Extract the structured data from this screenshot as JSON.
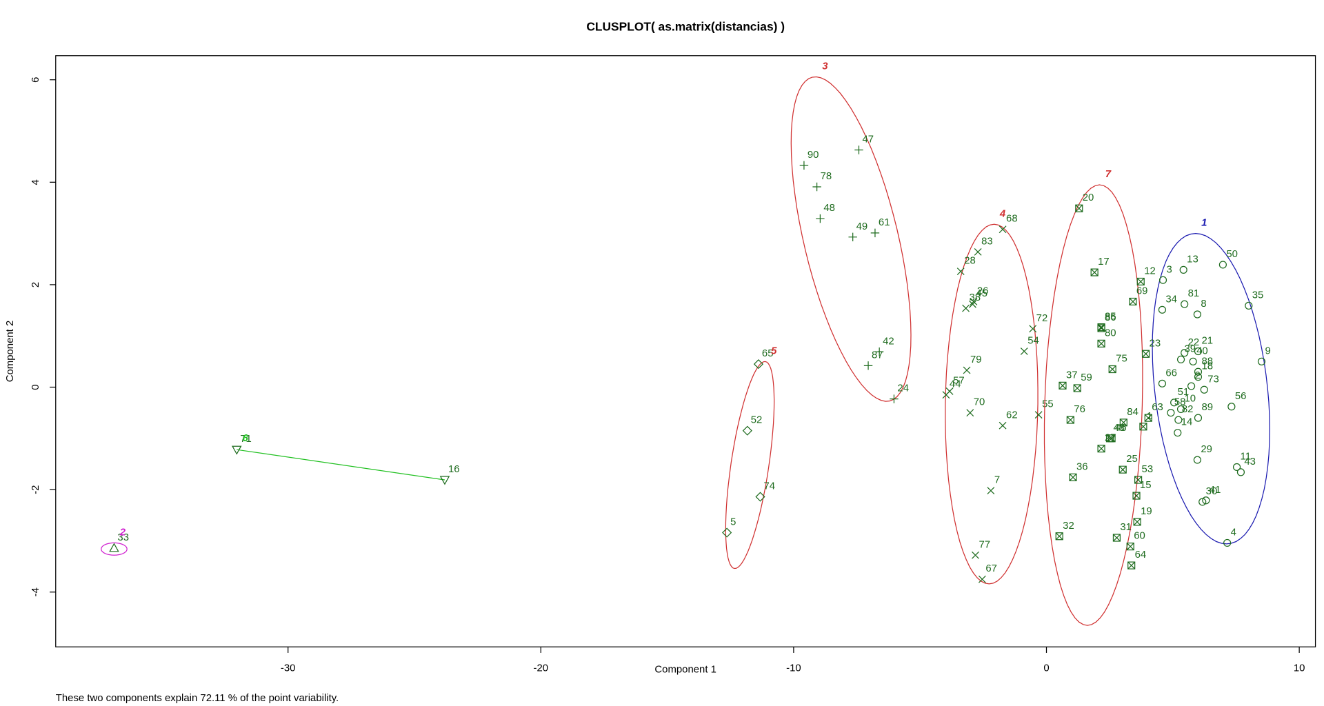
{
  "chart_data": {
    "type": "clusplot",
    "title": "CLUSPLOT( as.matrix(distancias) )",
    "xlabel": "Component 1",
    "ylabel": "Component 2",
    "footer": "These two components explain 72.11 % of the point variability.",
    "xlim": [
      -39.19,
      10.64
    ],
    "ylim": [
      -5.07,
      6.47
    ],
    "xticks": [
      -30,
      -20,
      -10,
      0,
      10
    ],
    "yticks": [
      -4,
      -2,
      0,
      2,
      4,
      6
    ],
    "point_color": "#1e6b1e",
    "clusters": [
      {
        "name": "1",
        "color": "#1a1ab0",
        "marker": "circle",
        "ellipse": {
          "center": [
            6.51,
            -0.03
          ],
          "a": [
            -0.61,
            3.03
          ],
          "b": [
            2.24,
            0
          ]
        },
        "points": [
          {
            "label": "50",
            "x": 6.98,
            "y": 2.39
          },
          {
            "label": "13",
            "x": 5.42,
            "y": 2.29
          },
          {
            "label": "3",
            "x": 4.61,
            "y": 2.09
          },
          {
            "label": "35",
            "x": 8.0,
            "y": 1.59
          },
          {
            "label": "34",
            "x": 4.58,
            "y": 1.51
          },
          {
            "label": "81",
            "x": 5.46,
            "y": 1.62
          },
          {
            "label": "8",
            "x": 5.97,
            "y": 1.42
          },
          {
            "label": "9",
            "x": 8.51,
            "y": 0.5
          },
          {
            "label": "22",
            "x": 5.46,
            "y": 0.67
          },
          {
            "label": "39",
            "x": 5.32,
            "y": 0.54
          },
          {
            "label": "21",
            "x": 6.0,
            "y": 0.7
          },
          {
            "label": "40",
            "x": 5.8,
            "y": 0.5
          },
          {
            "label": "88",
            "x": 6.0,
            "y": 0.3
          },
          {
            "label": "66",
            "x": 4.58,
            "y": 0.07
          },
          {
            "label": "18",
            "x": 6.0,
            "y": 0.2
          },
          {
            "label": "2",
            "x": 5.73,
            "y": 0.02
          },
          {
            "label": "73",
            "x": 6.24,
            "y": -0.05
          },
          {
            "label": "56",
            "x": 7.32,
            "y": -0.38
          },
          {
            "label": "51",
            "x": 5.05,
            "y": -0.3
          },
          {
            "label": "10",
            "x": 5.32,
            "y": -0.43
          },
          {
            "label": "82",
            "x": 5.22,
            "y": -0.64
          },
          {
            "label": "89",
            "x": 6.0,
            "y": -0.6
          },
          {
            "label": "58",
            "x": 4.92,
            "y": -0.5
          },
          {
            "label": "14",
            "x": 5.19,
            "y": -0.89
          },
          {
            "label": "29",
            "x": 5.97,
            "y": -1.42
          },
          {
            "label": "11",
            "x": 7.53,
            "y": -1.56
          },
          {
            "label": "43",
            "x": 7.69,
            "y": -1.66
          },
          {
            "label": "41",
            "x": 6.31,
            "y": -2.21
          },
          {
            "label": "30",
            "x": 6.17,
            "y": -2.24
          },
          {
            "label": "4",
            "x": 7.15,
            "y": -3.04
          }
        ]
      },
      {
        "name": "2",
        "color": "#d020d0",
        "marker": "triangle-up",
        "ellipse": {
          "center": [
            -36.88,
            -3.16
          ],
          "a": [
            0.51,
            0
          ],
          "b": [
            0,
            0.12
          ]
        },
        "points": [
          {
            "label": "33",
            "x": -36.88,
            "y": -3.14
          }
        ]
      },
      {
        "name": "3",
        "color": "#d03030",
        "marker": "plus",
        "ellipse": {
          "center": [
            -7.73,
            2.89
          ],
          "a": [
            -1.53,
            3.16
          ],
          "b": [
            1.81,
            0.21
          ]
        },
        "points": [
          {
            "label": "47",
            "x": -7.42,
            "y": 4.63
          },
          {
            "label": "90",
            "x": -9.59,
            "y": 4.33
          },
          {
            "label": "78",
            "x": -9.08,
            "y": 3.91
          },
          {
            "label": "48",
            "x": -8.95,
            "y": 3.29
          },
          {
            "label": "49",
            "x": -7.66,
            "y": 2.93
          },
          {
            "label": "61",
            "x": -6.78,
            "y": 3.01
          },
          {
            "label": "42",
            "x": -6.61,
            "y": 0.69
          },
          {
            "label": "87",
            "x": -7.05,
            "y": 0.42
          },
          {
            "label": "24",
            "x": -6.03,
            "y": -0.23
          }
        ]
      },
      {
        "name": "4",
        "color": "#d03030",
        "marker": "cross",
        "ellipse": {
          "center": [
            -2.17,
            -0.33
          ],
          "a": [
            0.1,
            3.51
          ],
          "b": [
            1.83,
            0
          ]
        },
        "points": [
          {
            "label": "68",
            "x": -1.73,
            "y": 3.08
          },
          {
            "label": "83",
            "x": -2.71,
            "y": 2.64
          },
          {
            "label": "28",
            "x": -3.39,
            "y": 2.26
          },
          {
            "label": "45",
            "x": -2.92,
            "y": 1.62
          },
          {
            "label": "38",
            "x": -3.19,
            "y": 1.54
          },
          {
            "label": "26",
            "x": -2.88,
            "y": 1.67
          },
          {
            "label": "72",
            "x": -0.54,
            "y": 1.14
          },
          {
            "label": "54",
            "x": -0.88,
            "y": 0.7
          },
          {
            "label": "79",
            "x": -3.15,
            "y": 0.33
          },
          {
            "label": "57",
            "x": -3.83,
            "y": -0.08
          },
          {
            "label": "44",
            "x": -3.97,
            "y": -0.15
          },
          {
            "label": "70",
            "x": -3.02,
            "y": -0.5
          },
          {
            "label": "55",
            "x": -0.31,
            "y": -0.54
          },
          {
            "label": "62",
            "x": -1.73,
            "y": -0.75
          },
          {
            "label": "7",
            "x": -2.2,
            "y": -2.02
          },
          {
            "label": "77",
            "x": -2.81,
            "y": -3.28
          },
          {
            "label": "67",
            "x": -2.54,
            "y": -3.75
          }
        ]
      },
      {
        "name": "5",
        "color": "#d03030",
        "marker": "diamond",
        "ellipse": {
          "center": [
            -11.73,
            -1.52
          ],
          "a": [
            0.61,
            2.02
          ],
          "b": [
            0.74,
            -0.05
          ]
        },
        "points": [
          {
            "label": "65",
            "x": -11.39,
            "y": 0.45
          },
          {
            "label": "52",
            "x": -11.83,
            "y": -0.85
          },
          {
            "label": "74",
            "x": -11.32,
            "y": -2.14
          },
          {
            "label": "5",
            "x": -12.64,
            "y": -2.84
          }
        ]
      },
      {
        "name": "6",
        "color": "#20c020",
        "marker": "triangle-down",
        "points": [
          {
            "label": "71",
            "x": -32.03,
            "y": -1.22
          },
          {
            "label": "16",
            "x": -23.8,
            "y": -1.81
          }
        ]
      },
      {
        "name": "7",
        "color": "#d03030",
        "marker": "square-x",
        "ellipse": {
          "center": [
            1.86,
            -0.35
          ],
          "a": [
            0.24,
            4.3
          ],
          "b": [
            1.93,
            0
          ]
        },
        "points": [
          {
            "label": "20",
            "x": 1.29,
            "y": 3.49
          },
          {
            "label": "17",
            "x": 1.9,
            "y": 2.24
          },
          {
            "label": "12",
            "x": 3.73,
            "y": 2.06
          },
          {
            "label": "69",
            "x": 3.42,
            "y": 1.67
          },
          {
            "label": "85",
            "x": 2.17,
            "y": 1.17
          },
          {
            "label": "86",
            "x": 2.17,
            "y": 1.15
          },
          {
            "label": "80",
            "x": 2.17,
            "y": 0.85
          },
          {
            "label": "23",
            "x": 3.93,
            "y": 0.65
          },
          {
            "label": "75",
            "x": 2.61,
            "y": 0.35
          },
          {
            "label": "37",
            "x": 0.64,
            "y": 0.03
          },
          {
            "label": "59",
            "x": 1.22,
            "y": -0.02
          },
          {
            "label": "63",
            "x": 4.03,
            "y": -0.6
          },
          {
            "label": "1",
            "x": 3.83,
            "y": -0.77
          },
          {
            "label": "84",
            "x": 3.05,
            "y": -0.69
          },
          {
            "label": "76",
            "x": 0.95,
            "y": -0.64
          },
          {
            "label": "46",
            "x": 2.58,
            "y": -1.0
          },
          {
            "label": "48",
            "x": 2.51,
            "y": -1.0
          },
          {
            "label": "27",
            "x": 2.17,
            "y": -1.2
          },
          {
            "label": "25",
            "x": 3.02,
            "y": -1.61
          },
          {
            "label": "53",
            "x": 3.63,
            "y": -1.81
          },
          {
            "label": "15",
            "x": 3.56,
            "y": -2.12
          },
          {
            "label": "36",
            "x": 1.05,
            "y": -1.76
          },
          {
            "label": "19",
            "x": 3.59,
            "y": -2.63
          },
          {
            "label": "32",
            "x": 0.51,
            "y": -2.91
          },
          {
            "label": "31",
            "x": 2.78,
            "y": -2.94
          },
          {
            "label": "60",
            "x": 3.32,
            "y": -3.11
          },
          {
            "label": "64",
            "x": 3.36,
            "y": -3.48
          }
        ]
      }
    ]
  }
}
